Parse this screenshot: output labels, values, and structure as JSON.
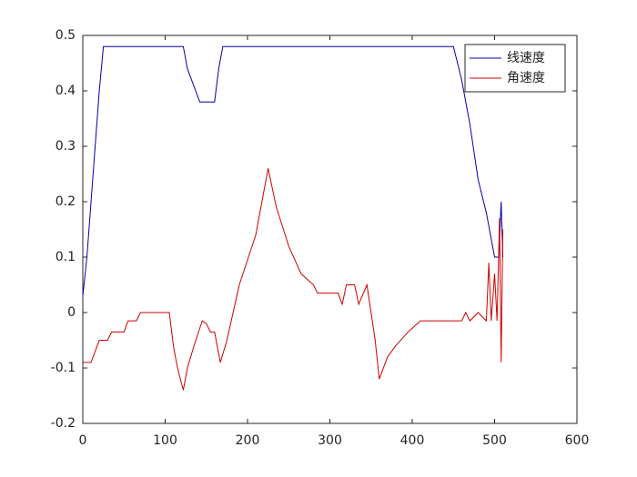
{
  "chart_data": {
    "type": "line",
    "xlim": [
      0,
      600
    ],
    "xticks": [
      0,
      100,
      200,
      300,
      400,
      500,
      600
    ],
    "ylim": [
      -0.2,
      0.5
    ],
    "yticks": [
      -0.2,
      -0.1,
      0,
      0.1,
      0.2,
      0.3,
      0.4,
      0.5
    ],
    "legend": "northeast",
    "box": true,
    "series": [
      {
        "name": "线速度",
        "color": "#0000aa",
        "x": [
          0,
          5,
          10,
          15,
          20,
          25,
          122,
          127,
          132,
          137,
          142,
          160,
          165,
          170,
          450,
          460,
          470,
          480,
          490,
          495,
          500,
          505,
          508,
          510
        ],
        "values": [
          0.03,
          0.1,
          0.2,
          0.3,
          0.4,
          0.48,
          0.48,
          0.44,
          0.42,
          0.4,
          0.38,
          0.38,
          0.44,
          0.48,
          0.48,
          0.42,
          0.34,
          0.24,
          0.18,
          0.14,
          0.1,
          0.1,
          0.2,
          0.1
        ]
      },
      {
        "name": "角速度",
        "color": "#cc0000",
        "x": [
          0,
          10,
          15,
          20,
          30,
          35,
          50,
          55,
          65,
          70,
          105,
          110,
          115,
          122,
          127,
          135,
          145,
          150,
          155,
          160,
          167,
          175,
          190,
          210,
          225,
          235,
          250,
          265,
          280,
          285,
          310,
          315,
          320,
          330,
          335,
          345,
          355,
          360,
          370,
          380,
          395,
          410,
          460,
          465,
          470,
          480,
          490,
          493,
          496,
          500,
          503,
          506,
          508,
          510
        ],
        "values": [
          -0.09,
          -0.09,
          -0.07,
          -0.05,
          -0.05,
          -0.035,
          -0.035,
          -0.015,
          -0.015,
          0,
          0,
          -0.06,
          -0.1,
          -0.14,
          -0.1,
          -0.06,
          -0.015,
          -0.02,
          -0.035,
          -0.035,
          -0.09,
          -0.05,
          0.05,
          0.14,
          0.26,
          0.19,
          0.12,
          0.07,
          0.05,
          0.035,
          0.035,
          0.015,
          0.05,
          0.05,
          0.015,
          0.05,
          -0.05,
          -0.12,
          -0.08,
          -0.06,
          -0.035,
          -0.015,
          -0.015,
          0,
          -0.015,
          0,
          -0.015,
          0.09,
          -0.015,
          0.07,
          -0.015,
          0.17,
          -0.09,
          0.15
        ]
      }
    ]
  }
}
